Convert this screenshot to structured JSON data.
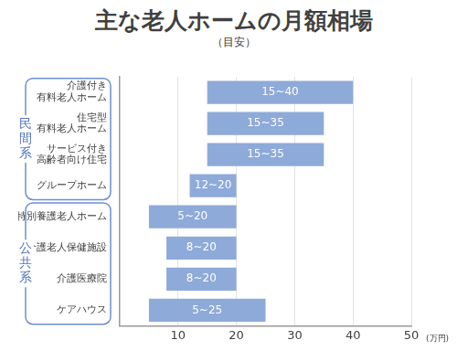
{
  "chart_data": {
    "type": "bar",
    "orientation": "horizontal",
    "title": "主な老人ホームの月額相場",
    "subtitle": "（目安）",
    "x_label": "(万円)",
    "categories": [
      "介護付き\n有料老人ホーム",
      "住宅型\n有料老人ホーム",
      "サービス付き\n高齢者向け住宅",
      "グループホーム",
      "特別養護老人ホーム",
      "介護老人保健施設",
      "介護医療院",
      "ケアハウス"
    ],
    "values": [
      [
        15,
        40
      ],
      [
        15,
        35
      ],
      [
        15,
        35
      ],
      [
        12,
        20
      ],
      [
        5,
        20
      ],
      [
        8,
        20
      ],
      [
        8,
        20
      ],
      [
        5,
        25
      ]
    ],
    "value_labels": [
      "15~40",
      "15~35",
      "15~35",
      "12~20",
      "5~20",
      "8~20",
      "8~20",
      "5~25"
    ],
    "data_labels": true,
    "groups": [
      {
        "name": "民間系",
        "categories": [
          "介護付き\n有料老人ホーム",
          "住宅型\n有料老人ホーム",
          "サービス付き\n高齢者向け住宅",
          "グループホーム"
        ]
      },
      {
        "name": "公共系",
        "categories": [
          "特別養護老人ホーム",
          "介護老人保健施設",
          "介護医療院",
          "ケアハウス"
        ]
      }
    ],
    "color": "#8eaad9",
    "xlim": [
      0,
      50
    ],
    "xticks": [
      10,
      20,
      30,
      40,
      50
    ],
    "grid": true,
    "legend": "none"
  }
}
